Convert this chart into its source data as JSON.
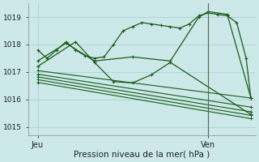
{
  "bg_color": "#cce8e8",
  "grid_color": "#aad4d4",
  "line_color": "#1a5c1a",
  "xlabel": "Pression niveau de la mer( hPa )",
  "ylim": [
    1014.7,
    1019.5
  ],
  "yticks": [
    1015,
    1016,
    1017,
    1018,
    1019
  ],
  "xlim": [
    0,
    48
  ],
  "xtick_pos": [
    2,
    38
  ],
  "xtick_labels": [
    "Jeu",
    "Ven"
  ],
  "vline_x": 38,
  "series": [
    {
      "x": [
        2,
        4,
        6,
        8,
        10,
        12,
        14,
        16,
        18,
        20,
        22,
        24,
        26,
        28,
        30,
        32,
        34,
        36,
        38,
        40,
        42,
        44,
        46,
        47
      ],
      "y": [
        1017.8,
        1017.5,
        1017.8,
        1018.1,
        1017.8,
        1017.6,
        1017.5,
        1017.55,
        1018.0,
        1018.5,
        1018.65,
        1018.8,
        1018.75,
        1018.7,
        1018.65,
        1018.6,
        1018.75,
        1019.05,
        1019.15,
        1019.1,
        1019.05,
        1018.8,
        1017.5,
        1016.05
      ]
    },
    {
      "x": [
        2,
        8,
        14,
        22,
        30,
        36,
        38,
        42,
        47
      ],
      "y": [
        1017.4,
        1018.05,
        1017.4,
        1017.55,
        1017.4,
        1019.0,
        1019.2,
        1019.1,
        1016.05
      ]
    },
    {
      "x": [
        2,
        10,
        14,
        18,
        22,
        26,
        30,
        47
      ],
      "y": [
        1017.2,
        1018.1,
        1017.35,
        1016.65,
        1016.6,
        1016.9,
        1017.35,
        1015.45
      ]
    },
    {
      "x": [
        2,
        47
      ],
      "y": [
        1017.05,
        1016.05
      ]
    },
    {
      "x": [
        2,
        47
      ],
      "y": [
        1016.92,
        1015.72
      ]
    },
    {
      "x": [
        2,
        47
      ],
      "y": [
        1016.82,
        1015.55
      ]
    },
    {
      "x": [
        2,
        47
      ],
      "y": [
        1016.72,
        1015.42
      ]
    },
    {
      "x": [
        2,
        47
      ],
      "y": [
        1016.62,
        1015.3
      ]
    }
  ]
}
